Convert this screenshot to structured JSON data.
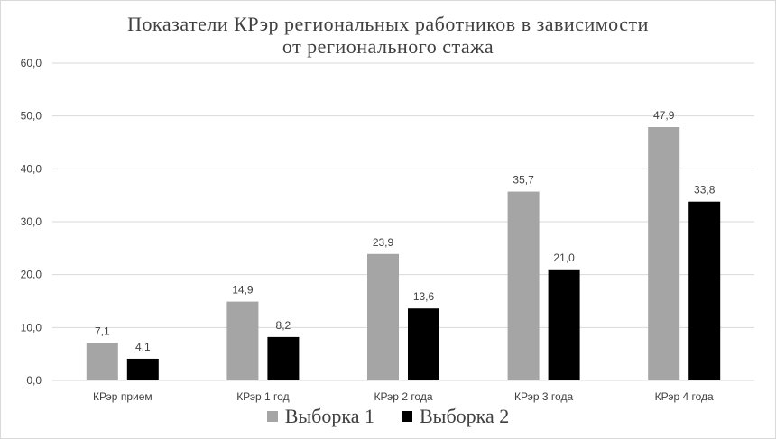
{
  "chart_data": {
    "type": "bar",
    "title": [
      "Показатели КРэр региональных работников в зависимости",
      "от регионального стажа"
    ],
    "categories": [
      "КРэр прием",
      "КРэр 1 год",
      "КРэр 2 года",
      "КРэр 3 года",
      "КРэр 4 года"
    ],
    "series": [
      {
        "name": "Выборка 1",
        "color": "#a5a5a5",
        "values": [
          7.1,
          14.9,
          23.9,
          35.7,
          47.9
        ],
        "labels": [
          "7,1",
          "14,9",
          "23,9",
          "35,7",
          "47,9"
        ]
      },
      {
        "name": "Выборка 2",
        "color": "#000000",
        "values": [
          4.1,
          8.2,
          13.6,
          21.0,
          33.8
        ],
        "labels": [
          "4,1",
          "8,2",
          "13,6",
          "21,0",
          "33,8"
        ]
      }
    ],
    "yticks": [
      "0,0",
      "10,0",
      "20,0",
      "30,0",
      "40,0",
      "50,0",
      "60,0"
    ],
    "ylim": [
      0,
      60
    ],
    "grid": true,
    "gridline_color": "#d9d9d9",
    "legend_position": "bottom"
  }
}
